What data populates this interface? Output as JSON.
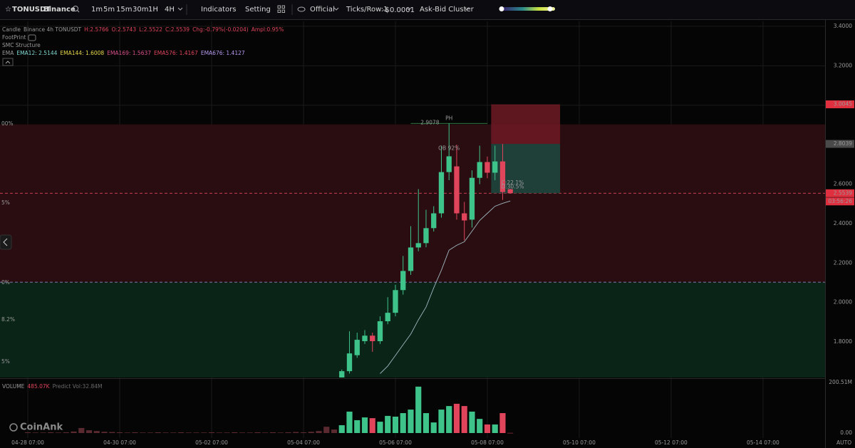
{
  "toolbar": {
    "symbol": "TONUSDT",
    "exchange": "Binance",
    "intervals": [
      "1m",
      "5m",
      "15m",
      "30m",
      "1H",
      "4H"
    ],
    "active_interval": 5,
    "buttons": [
      "Indicators",
      "Setting"
    ],
    "source": "Official",
    "ticks": "Ticks/Row:1",
    "tick_size": "-$0.0001",
    "cluster": "Ask-Bid Cluster"
  },
  "legend": {
    "candle": [
      {
        "text": "Candle",
        "color": "#9a9a9a"
      },
      {
        "text": "Binance 4h TONUSDT",
        "color": "#9a9a9a"
      },
      {
        "text": "H:2.5766",
        "color": "#e0455c"
      },
      {
        "text": "O:2.5743",
        "color": "#e0455c"
      },
      {
        "text": "L:2.5522",
        "color": "#e0455c"
      },
      {
        "text": "C:2.5539",
        "color": "#e0455c"
      },
      {
        "text": "Chg:-0.79%(-0.0204)",
        "color": "#e0455c"
      },
      {
        "text": "Ampl:0.95%",
        "color": "#e0455c"
      }
    ],
    "footprint": "FootPrint",
    "smc": "SMC Structure",
    "ema": [
      {
        "text": "EMA",
        "color": "#9a9a9a"
      },
      {
        "text": "EMA12: 2.5144",
        "color": "#7fd8d0"
      },
      {
        "text": "EMA144: 1.6008",
        "color": "#e8d84a"
      },
      {
        "text": "EMA169: 1.5637",
        "color": "#d8508a"
      },
      {
        "text": "EMA576: 1.4167",
        "color": "#e0455c"
      },
      {
        "text": "EMA676: 1.4127",
        "color": "#b79af0"
      }
    ],
    "volume": [
      {
        "text": "VOLUME",
        "color": "#9a9a9a"
      },
      {
        "text": "485.07K",
        "color": "#e0455c"
      },
      {
        "text": "Predict Vol:32.84M",
        "color": "#6a6a6a"
      }
    ]
  },
  "zone_labels": [
    "00%",
    "5%",
    "0%",
    "8.2%",
    "5%"
  ],
  "annotations": [
    "PH",
    "OB 92%",
    "C:22.1%",
    "D:30.5%"
  ],
  "watermark": "CoinAnk",
  "countdown": "03:56:26",
  "scale_mode": "AUTO",
  "chart_data": {
    "type": "candlestick",
    "xlim": [
      -3.63,
      104.1
    ],
    "xticks": [
      {
        "value": 0,
        "label": "04-28 07:00"
      },
      {
        "value": 12,
        "label": "04-30 07:00"
      },
      {
        "value": 24,
        "label": "05-02 07:00"
      },
      {
        "value": 36,
        "label": "05-04 07:00"
      },
      {
        "value": 48,
        "label": "05-06 07:00"
      },
      {
        "value": 60,
        "label": "05-08 07:00"
      },
      {
        "value": 72,
        "label": "05-10 07:00"
      },
      {
        "value": 84,
        "label": "05-12 07:00"
      },
      {
        "value": 96,
        "label": "05-14 07:00"
      }
    ],
    "ylim": [
      1.62,
      3.425
    ],
    "yticks": [
      {
        "value": 1.8,
        "label": "1.8000"
      },
      {
        "value": 2.0,
        "label": "2.0000"
      },
      {
        "value": 2.2,
        "label": "2.2000"
      },
      {
        "value": 2.4,
        "label": "2.4000"
      },
      {
        "value": 2.6,
        "label": "2.6000"
      },
      {
        "value": 2.8,
        "label": "2.8000"
      },
      {
        "value": 3.0,
        "label": "3.0000"
      },
      {
        "value": 3.2,
        "label": "3.2000"
      },
      {
        "value": 3.4,
        "label": "3.4000"
      }
    ],
    "vlim": [
      0,
      200.51
    ],
    "vticks": [
      {
        "value": 200.51,
        "label": "200.51M"
      },
      {
        "value": 0,
        "label": "0.00"
      }
    ],
    "grid": true,
    "up_color": "#3ec48a",
    "down_color": "#e0455c",
    "ohlc": [
      null,
      null,
      null,
      null,
      null,
      null,
      null,
      null,
      null,
      null,
      null,
      null,
      null,
      null,
      null,
      null,
      null,
      null,
      null,
      null,
      null,
      null,
      null,
      null,
      null,
      null,
      null,
      null,
      null,
      null,
      null,
      null,
      null,
      null,
      null,
      null,
      null,
      null,
      null,
      null,
      null,
      [
        1.6,
        1.66,
        1.59,
        1.652
      ],
      [
        1.652,
        1.854,
        1.64,
        1.742
      ],
      [
        1.733,
        1.847,
        1.72,
        1.811
      ],
      [
        1.804,
        1.86,
        1.79,
        1.832
      ],
      [
        1.832,
        1.847,
        1.75,
        1.804
      ],
      [
        1.804,
        1.93,
        1.79,
        1.905
      ],
      [
        1.905,
        2.027,
        1.89,
        1.948
      ],
      [
        1.948,
        2.09,
        1.93,
        2.063
      ],
      [
        2.063,
        2.236,
        2.04,
        2.16
      ],
      [
        2.16,
        2.387,
        2.14,
        2.279
      ],
      [
        2.279,
        2.575,
        2.26,
        2.301
      ],
      [
        2.301,
        2.47,
        2.28,
        2.377
      ],
      [
        2.377,
        2.488,
        2.36,
        2.452
      ],
      [
        2.452,
        2.795,
        2.43,
        2.661
      ],
      [
        2.661,
        2.9078,
        2.62,
        2.741
      ],
      [
        2.69,
        2.8,
        2.42,
        2.452
      ],
      [
        2.452,
        2.51,
        2.315,
        2.416
      ],
      [
        2.42,
        2.67,
        2.38,
        2.632
      ],
      [
        2.632,
        2.795,
        2.6,
        2.712
      ],
      [
        2.712,
        2.74,
        2.63,
        2.658
      ],
      [
        2.658,
        2.795,
        2.62,
        2.715
      ],
      [
        2.715,
        2.8039,
        2.52,
        2.56
      ],
      [
        2.5743,
        2.5766,
        2.5522,
        2.5539
      ]
    ],
    "volume": [
      3,
      2,
      2,
      3,
      2,
      3,
      6,
      20,
      11,
      8,
      5,
      4,
      3,
      2,
      3,
      2,
      2,
      3,
      2,
      2,
      3,
      2,
      2,
      2,
      3,
      2,
      2,
      3,
      2,
      2,
      3,
      2,
      3,
      2,
      3,
      4,
      3,
      5,
      8,
      25,
      14,
      31,
      85,
      51,
      62,
      59,
      45,
      68,
      65,
      79,
      93,
      184,
      79,
      42,
      93,
      107,
      116,
      107,
      85,
      56,
      34,
      34,
      79,
      0.48507
    ],
    "ema": {
      "color": "#9fb8c0",
      "values": [
        null,
        null,
        null,
        null,
        null,
        null,
        null,
        null,
        null,
        null,
        null,
        null,
        null,
        null,
        null,
        null,
        null,
        null,
        null,
        null,
        null,
        null,
        null,
        null,
        null,
        null,
        null,
        null,
        null,
        null,
        null,
        null,
        null,
        null,
        null,
        null,
        null,
        null,
        null,
        null,
        null,
        null,
        null,
        null,
        null,
        null,
        1.64,
        1.678,
        1.732,
        1.786,
        1.84,
        1.912,
        1.977,
        2.074,
        2.164,
        2.265,
        2.29,
        2.308,
        2.362,
        2.416,
        2.452,
        2.488,
        2.503,
        2.5144
      ]
    },
    "zones": [
      {
        "top": 2.9027,
        "bottom": 2.103,
        "color": "#2a0d11"
      },
      {
        "top": 2.103,
        "bottom": 1.62,
        "color": "#0b2418"
      }
    ],
    "boxes": [
      {
        "start": 61,
        "end": 70,
        "top": 3.0045,
        "bottom": 2.8039,
        "color": "#6e1a24"
      },
      {
        "start": 61,
        "end": 70,
        "top": 2.8039,
        "bottom": 2.5539,
        "color": "#1d4a40"
      }
    ],
    "levels": [
      {
        "value": 2.9078,
        "from": 50,
        "to": 60,
        "color": "#3f9a55",
        "dash": false
      },
      {
        "value": 2.5539,
        "from": null,
        "to": null,
        "color": "#e0455c",
        "dash": true
      },
      {
        "value": 2.103,
        "from": null,
        "to": null,
        "color": "#8f80c0",
        "dash": true
      }
    ],
    "markers": [
      {
        "value": 3.0045,
        "color": "#e0303f"
      },
      {
        "value": 2.8039,
        "color": "#4a4a4a"
      },
      {
        "value": 2.5539,
        "color": "#e0303f"
      }
    ]
  }
}
